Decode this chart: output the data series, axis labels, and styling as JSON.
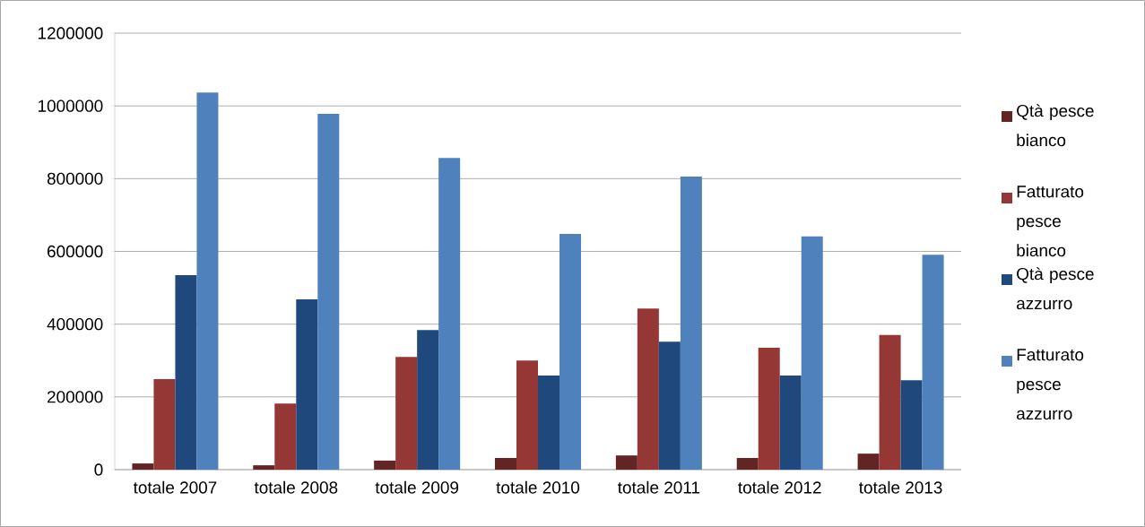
{
  "chart_data": {
    "type": "bar",
    "categories": [
      "totale 2007",
      "totale 2008",
      "totale 2009",
      "totale 2010",
      "totale 2011",
      "totale 2012",
      "totale 2013"
    ],
    "series": [
      {
        "name": "Qtà pesce bianco",
        "color": "#632523",
        "values": [
          17000,
          12000,
          25000,
          32000,
          39000,
          32000,
          44000
        ]
      },
      {
        "name": "Fatturato pesce bianco",
        "color": "#953735",
        "values": [
          249000,
          182000,
          310000,
          300000,
          443000,
          335000,
          370000
        ]
      },
      {
        "name": "Qtà pesce azzurro",
        "color": "#1f497d",
        "values": [
          535000,
          468000,
          384000,
          259000,
          352000,
          259000,
          246000
        ]
      },
      {
        "name": "Fatturato pesce azzurro",
        "color": "#4f81bd",
        "values": [
          1037000,
          978000,
          857000,
          648000,
          806000,
          641000,
          591000
        ]
      }
    ],
    "ylim": [
      0,
      1200000
    ],
    "yticks": [
      0,
      200000,
      400000,
      600000,
      800000,
      1000000,
      1200000
    ],
    "grid": "y",
    "legend": "right"
  }
}
